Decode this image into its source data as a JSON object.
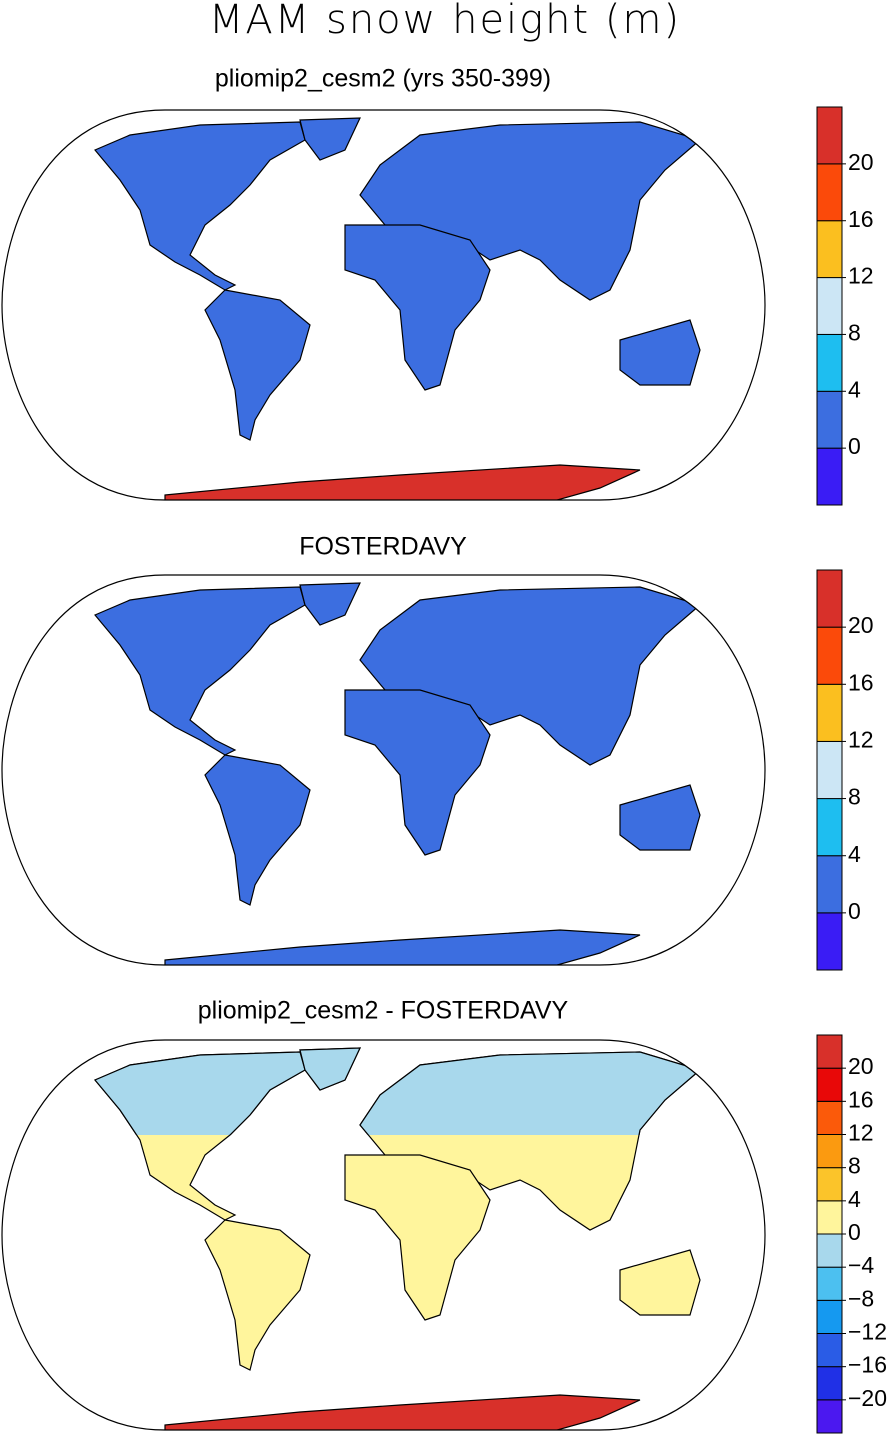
{
  "title": "MAM snow height (m)",
  "panels": [
    {
      "title": "pliomip2_cesm2 (yrs 350-399)",
      "colorbar": {
        "colors": [
          "#3a1cf5",
          "#3c6ee0",
          "#1ebef0",
          "#cce6f5",
          "#fbbf1f",
          "#fb4a0a",
          "#d8302a"
        ],
        "ticks": [
          0,
          4,
          8,
          12,
          16,
          20
        ]
      }
    },
    {
      "title": "FOSTERDAVY",
      "colorbar": {
        "colors": [
          "#3a1cf5",
          "#3c6ee0",
          "#1ebef0",
          "#cce6f5",
          "#fbbf1f",
          "#fb4a0a",
          "#d8302a"
        ],
        "ticks": [
          0,
          4,
          8,
          12,
          16,
          20
        ]
      }
    },
    {
      "title": "pliomip2_cesm2 - FOSTERDAVY",
      "colorbar": {
        "colors": [
          "#4b18f0",
          "#2030e6",
          "#2a5ce6",
          "#1599f0",
          "#4cc0f0",
          "#a8d8ec",
          "#fff59c",
          "#fbc42a",
          "#fb9a10",
          "#fb5a0a",
          "#e80808",
          "#d8302a"
        ],
        "ticks": [
          {
            "value": -20,
            "label": "−20"
          },
          {
            "value": -16,
            "label": "−16"
          },
          {
            "value": -12,
            "label": "−12"
          },
          {
            "value": -8,
            "label": "−8"
          },
          {
            "value": -4,
            "label": "−4"
          },
          0,
          4,
          8,
          12,
          16,
          20
        ]
      }
    }
  ]
}
